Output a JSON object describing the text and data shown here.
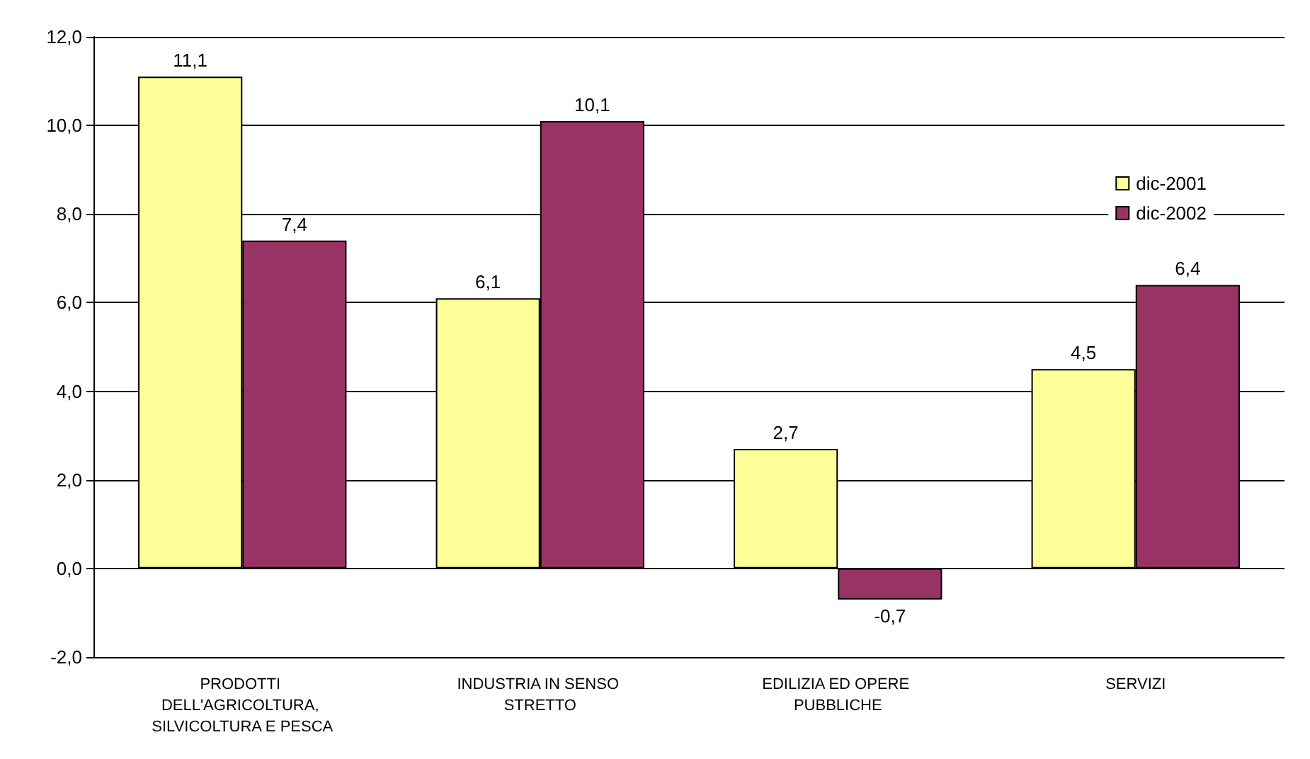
{
  "chart_data": {
    "type": "bar",
    "categories": [
      "PRODOTTI DELL'AGRICOLTURA, SILVICOLTURA E PESCA",
      "INDUSTRIA IN SENSO STRETTO",
      "EDILIZIA ED OPERE PUBBLICHE",
      "SERVIZI"
    ],
    "series": [
      {
        "name": "dic-2001",
        "color": "#ffff99",
        "values": [
          11.1,
          6.1,
          2.7,
          4.5
        ],
        "value_labels": [
          "11,1",
          "6,1",
          "2,7",
          "4,5"
        ]
      },
      {
        "name": "dic-2002",
        "color": "#993366",
        "values": [
          7.4,
          10.1,
          -0.7,
          6.4
        ],
        "value_labels": [
          "7,4",
          "10,1",
          "-0,7",
          "6,4"
        ]
      }
    ],
    "ylim": [
      -2,
      12
    ],
    "yticks": [
      {
        "value": -2,
        "label": "-2,0"
      },
      {
        "value": 0,
        "label": "0,0"
      },
      {
        "value": 2,
        "label": "2,0"
      },
      {
        "value": 4,
        "label": "4,0"
      },
      {
        "value": 6,
        "label": "6,0"
      },
      {
        "value": 8,
        "label": "8,0"
      },
      {
        "value": 10,
        "label": "10,0"
      },
      {
        "value": 12,
        "label": "12,0"
      }
    ],
    "grid": "y",
    "legend": "top right"
  }
}
